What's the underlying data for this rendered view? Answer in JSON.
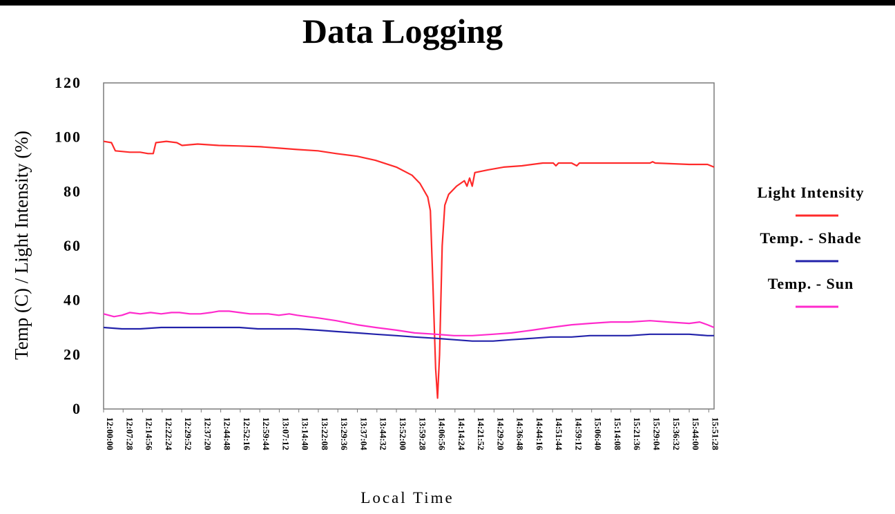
{
  "chart_data": {
    "type": "line",
    "title": "Data Logging",
    "xlabel": "Local Time",
    "ylabel": "Temp (C) / Light Intensity (%)",
    "ylim": [
      0,
      120
    ],
    "yticks": [
      0,
      20,
      40,
      60,
      80,
      100,
      120
    ],
    "grid": false,
    "legend_position": "right",
    "xticks": [
      "12:00:00",
      "12:07:28",
      "12:14:56",
      "12:22:24",
      "12:29:52",
      "12:37:20",
      "12:44:48",
      "12:52:16",
      "12:59:44",
      "13:07:12",
      "13:14:40",
      "13:22:08",
      "13:29:36",
      "13:37:04",
      "13:44:32",
      "13:52:00",
      "13:59:28",
      "14:06:56",
      "14:14:24",
      "14:21:52",
      "14:29:20",
      "14:36:48",
      "14:44:16",
      "14:51:44",
      "14:59:12",
      "15:06:40",
      "15:14:08",
      "15:21:36",
      "15:29:04",
      "15:36:32",
      "15:44:00",
      "15:51:28"
    ],
    "x_end": "15:53:30",
    "series": [
      {
        "name": "Light Intensity",
        "color": "#ff2a2a",
        "points": [
          [
            "12:00:00",
            98.5
          ],
          [
            "12:03:00",
            98
          ],
          [
            "12:04:30",
            95
          ],
          [
            "12:10:00",
            94.5
          ],
          [
            "12:14:00",
            94.5
          ],
          [
            "12:17:00",
            94
          ],
          [
            "12:19:00",
            94
          ],
          [
            "12:20:00",
            98
          ],
          [
            "12:24:00",
            98.5
          ],
          [
            "12:28:00",
            98
          ],
          [
            "12:30:00",
            97
          ],
          [
            "12:36:00",
            97.5
          ],
          [
            "12:44:00",
            97
          ],
          [
            "12:52:00",
            96.8
          ],
          [
            "13:00:00",
            96.5
          ],
          [
            "13:07:00",
            96
          ],
          [
            "13:14:00",
            95.5
          ],
          [
            "13:22:00",
            95
          ],
          [
            "13:29:00",
            94
          ],
          [
            "13:37:00",
            93
          ],
          [
            "13:44:00",
            91.5
          ],
          [
            "13:52:00",
            89
          ],
          [
            "13:58:00",
            86
          ],
          [
            "14:01:00",
            83
          ],
          [
            "14:04:00",
            78
          ],
          [
            "14:05:00",
            73
          ],
          [
            "14:06:00",
            45
          ],
          [
            "14:07:00",
            15
          ],
          [
            "14:07:45",
            4
          ],
          [
            "14:08:30",
            20
          ],
          [
            "14:09:30",
            60
          ],
          [
            "14:10:30",
            75
          ],
          [
            "14:12:00",
            79
          ],
          [
            "14:15:00",
            82
          ],
          [
            "14:18:00",
            84
          ],
          [
            "14:19:00",
            82
          ],
          [
            "14:20:00",
            85
          ],
          [
            "14:21:00",
            82
          ],
          [
            "14:22:00",
            87
          ],
          [
            "14:27:00",
            88
          ],
          [
            "14:33:00",
            89
          ],
          [
            "14:40:00",
            89.5
          ],
          [
            "14:48:00",
            90.5
          ],
          [
            "14:52:00",
            90.5
          ],
          [
            "14:53:00",
            89.5
          ],
          [
            "14:54:00",
            90.5
          ],
          [
            "14:59:00",
            90.5
          ],
          [
            "15:01:00",
            89.5
          ],
          [
            "15:02:00",
            90.5
          ],
          [
            "15:15:00",
            90.5
          ],
          [
            "15:29:00",
            90.5
          ],
          [
            "15:30:00",
            91
          ],
          [
            "15:31:00",
            90.5
          ],
          [
            "15:44:00",
            90
          ],
          [
            "15:51:00",
            90
          ],
          [
            "15:53:30",
            89
          ]
        ]
      },
      {
        "name": "Temp. - Shade",
        "color": "#2222aa",
        "points": [
          [
            "12:00:00",
            30
          ],
          [
            "12:07:00",
            29.5
          ],
          [
            "12:14:00",
            29.5
          ],
          [
            "12:22:00",
            30
          ],
          [
            "12:29:00",
            30
          ],
          [
            "12:37:00",
            30
          ],
          [
            "12:44:00",
            30
          ],
          [
            "12:52:00",
            30
          ],
          [
            "12:59:00",
            29.5
          ],
          [
            "13:07:00",
            29.5
          ],
          [
            "13:14:00",
            29.5
          ],
          [
            "13:22:00",
            29
          ],
          [
            "13:29:00",
            28.5
          ],
          [
            "13:37:00",
            28
          ],
          [
            "13:44:00",
            27.5
          ],
          [
            "13:52:00",
            27
          ],
          [
            "13:59:00",
            26.5
          ],
          [
            "14:07:00",
            26
          ],
          [
            "14:14:00",
            25.5
          ],
          [
            "14:21:00",
            25
          ],
          [
            "14:29:00",
            25
          ],
          [
            "14:36:00",
            25.5
          ],
          [
            "14:44:00",
            26
          ],
          [
            "14:51:00",
            26.5
          ],
          [
            "14:59:00",
            26.5
          ],
          [
            "15:06:00",
            27
          ],
          [
            "15:14:00",
            27
          ],
          [
            "15:21:00",
            27
          ],
          [
            "15:29:00",
            27.5
          ],
          [
            "15:36:00",
            27.5
          ],
          [
            "15:44:00",
            27.5
          ],
          [
            "15:51:00",
            27
          ],
          [
            "15:53:30",
            27
          ]
        ]
      },
      {
        "name": "Temp. - Sun",
        "color": "#ff2acc",
        "points": [
          [
            "12:00:00",
            35
          ],
          [
            "12:04:00",
            34
          ],
          [
            "12:07:00",
            34.5
          ],
          [
            "12:10:00",
            35.5
          ],
          [
            "12:14:00",
            35
          ],
          [
            "12:18:00",
            35.5
          ],
          [
            "12:22:00",
            35
          ],
          [
            "12:26:00",
            35.5
          ],
          [
            "12:29:00",
            35.5
          ],
          [
            "12:33:00",
            35
          ],
          [
            "12:37:00",
            35
          ],
          [
            "12:41:00",
            35.5
          ],
          [
            "12:44:00",
            36
          ],
          [
            "12:48:00",
            36
          ],
          [
            "12:52:00",
            35.5
          ],
          [
            "12:56:00",
            35
          ],
          [
            "12:59:00",
            35
          ],
          [
            "13:03:00",
            35
          ],
          [
            "13:07:00",
            34.5
          ],
          [
            "13:11:00",
            35
          ],
          [
            "13:14:00",
            34.5
          ],
          [
            "13:18:00",
            34
          ],
          [
            "13:22:00",
            33.5
          ],
          [
            "13:29:00",
            32.5
          ],
          [
            "13:37:00",
            31
          ],
          [
            "13:44:00",
            30
          ],
          [
            "13:52:00",
            29
          ],
          [
            "13:59:00",
            28
          ],
          [
            "14:07:00",
            27.5
          ],
          [
            "14:14:00",
            27
          ],
          [
            "14:21:00",
            27
          ],
          [
            "14:29:00",
            27.5
          ],
          [
            "14:36:00",
            28
          ],
          [
            "14:44:00",
            29
          ],
          [
            "14:51:00",
            30
          ],
          [
            "14:59:00",
            31
          ],
          [
            "15:06:00",
            31.5
          ],
          [
            "15:14:00",
            32
          ],
          [
            "15:21:00",
            32
          ],
          [
            "15:29:00",
            32.5
          ],
          [
            "15:36:00",
            32
          ],
          [
            "15:44:00",
            31.5
          ],
          [
            "15:48:00",
            32
          ],
          [
            "15:51:00",
            31
          ],
          [
            "15:53:30",
            30
          ]
        ]
      }
    ]
  }
}
